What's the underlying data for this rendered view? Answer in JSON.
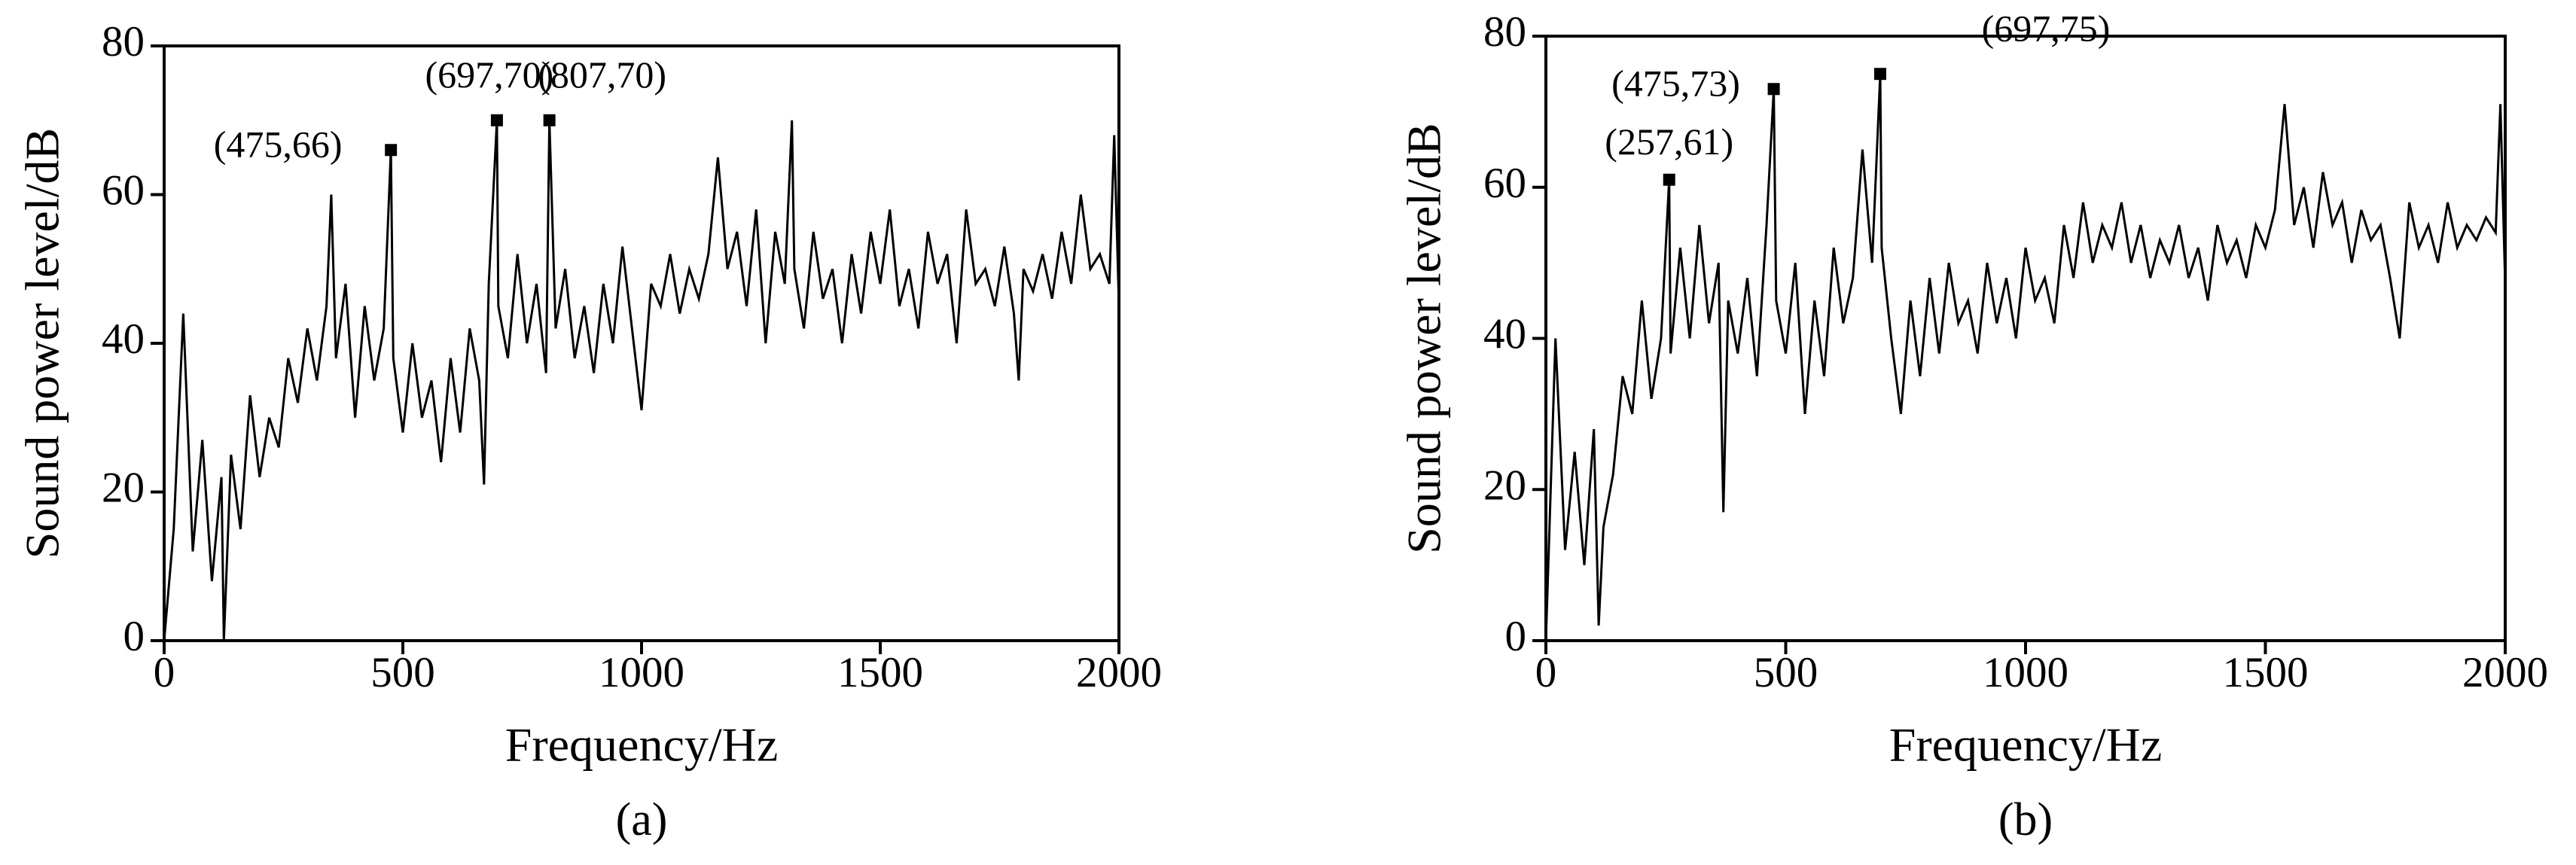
{
  "chart_data": [
    {
      "type": "line",
      "caption": "(a)",
      "xlabel": "Frequency/Hz",
      "ylabel": "Sound power level/dB",
      "color": "#000000",
      "xlim": [
        0,
        2000
      ],
      "xticks": [
        0,
        500,
        1000,
        1500,
        2000
      ],
      "ylim": [
        0,
        80
      ],
      "yticks": [
        0,
        20,
        40,
        60,
        80
      ],
      "x": [
        0,
        20,
        40,
        60,
        80,
        100,
        120,
        125,
        140,
        160,
        180,
        200,
        220,
        240,
        260,
        280,
        300,
        320,
        340,
        350,
        360,
        380,
        400,
        420,
        440,
        460,
        475,
        480,
        500,
        520,
        540,
        560,
        580,
        600,
        620,
        640,
        660,
        670,
        680,
        697,
        700,
        720,
        740,
        760,
        780,
        800,
        807,
        820,
        840,
        860,
        880,
        900,
        920,
        940,
        960,
        980,
        1000,
        1020,
        1040,
        1060,
        1080,
        1100,
        1120,
        1140,
        1160,
        1180,
        1200,
        1220,
        1240,
        1260,
        1280,
        1300,
        1315,
        1320,
        1340,
        1360,
        1380,
        1400,
        1420,
        1440,
        1460,
        1480,
        1500,
        1520,
        1540,
        1560,
        1580,
        1600,
        1620,
        1640,
        1660,
        1680,
        1700,
        1720,
        1740,
        1760,
        1780,
        1790,
        1800,
        1820,
        1840,
        1860,
        1880,
        1900,
        1920,
        1940,
        1960,
        1980,
        1990,
        2000
      ],
      "values": [
        0,
        15,
        44,
        12,
        27,
        8,
        22,
        0,
        25,
        15,
        33,
        22,
        30,
        26,
        38,
        32,
        42,
        35,
        45,
        60,
        38,
        48,
        30,
        45,
        35,
        42,
        66,
        38,
        28,
        40,
        30,
        35,
        24,
        38,
        28,
        42,
        35,
        21,
        48,
        70,
        45,
        38,
        52,
        40,
        48,
        36,
        70,
        42,
        50,
        38,
        45,
        36,
        48,
        40,
        53,
        42,
        31,
        48,
        45,
        52,
        44,
        50,
        46,
        52,
        65,
        50,
        55,
        45,
        58,
        40,
        55,
        48,
        70,
        50,
        42,
        55,
        46,
        50,
        40,
        52,
        44,
        55,
        48,
        58,
        45,
        50,
        42,
        55,
        48,
        52,
        40,
        58,
        48,
        50,
        45,
        53,
        44,
        35,
        50,
        47,
        52,
        46,
        55,
        48,
        60,
        50,
        52,
        48,
        68,
        45
      ],
      "annotations": [
        {
          "text": "(475,66)",
          "x": 475,
          "y": 66
        },
        {
          "text": "(697,70)",
          "x": 697,
          "y": 70
        },
        {
          "text": "(807,70)",
          "x": 807,
          "y": 70
        }
      ]
    },
    {
      "type": "line",
      "caption": "(b)",
      "xlabel": "Frequency/Hz",
      "ylabel": "Sound power level/dB",
      "color": "#000000",
      "xlim": [
        0,
        2000
      ],
      "xticks": [
        0,
        500,
        1000,
        1500,
        2000
      ],
      "ylim": [
        0,
        80
      ],
      "yticks": [
        0,
        20,
        40,
        60,
        80
      ],
      "x": [
        0,
        20,
        40,
        60,
        80,
        100,
        110,
        120,
        140,
        160,
        180,
        200,
        220,
        240,
        257,
        260,
        280,
        300,
        320,
        340,
        360,
        370,
        380,
        400,
        420,
        440,
        460,
        475,
        480,
        500,
        520,
        540,
        560,
        580,
        600,
        620,
        640,
        660,
        680,
        697,
        700,
        720,
        740,
        760,
        780,
        800,
        820,
        840,
        860,
        880,
        900,
        920,
        940,
        960,
        980,
        1000,
        1020,
        1040,
        1060,
        1080,
        1100,
        1120,
        1140,
        1160,
        1180,
        1200,
        1220,
        1240,
        1260,
        1280,
        1300,
        1320,
        1340,
        1360,
        1380,
        1400,
        1420,
        1440,
        1460,
        1480,
        1500,
        1520,
        1540,
        1560,
        1580,
        1600,
        1620,
        1640,
        1660,
        1680,
        1700,
        1720,
        1740,
        1760,
        1780,
        1800,
        1820,
        1840,
        1860,
        1880,
        1900,
        1920,
        1940,
        1960,
        1980,
        1990,
        2000
      ],
      "values": [
        0,
        40,
        12,
        25,
        10,
        28,
        2,
        15,
        22,
        35,
        30,
        45,
        32,
        40,
        61,
        38,
        52,
        40,
        55,
        42,
        50,
        17,
        45,
        38,
        48,
        35,
        55,
        73,
        45,
        38,
        50,
        30,
        45,
        35,
        52,
        42,
        48,
        65,
        50,
        75,
        52,
        40,
        30,
        45,
        35,
        48,
        38,
        50,
        42,
        45,
        38,
        50,
        42,
        48,
        40,
        52,
        45,
        48,
        42,
        55,
        48,
        58,
        50,
        55,
        52,
        58,
        50,
        55,
        48,
        53,
        50,
        55,
        48,
        52,
        45,
        55,
        50,
        53,
        48,
        55,
        52,
        57,
        71,
        55,
        60,
        52,
        62,
        55,
        58,
        50,
        57,
        53,
        55,
        48,
        40,
        58,
        52,
        55,
        50,
        58,
        52,
        55,
        53,
        56,
        54,
        71,
        47
      ],
      "annotations": [
        {
          "text": "(257,61)",
          "x": 257,
          "y": 61
        },
        {
          "text": "(475,73)",
          "x": 475,
          "y": 73
        },
        {
          "text": "(697,75)",
          "x": 697,
          "y": 75
        }
      ]
    }
  ]
}
